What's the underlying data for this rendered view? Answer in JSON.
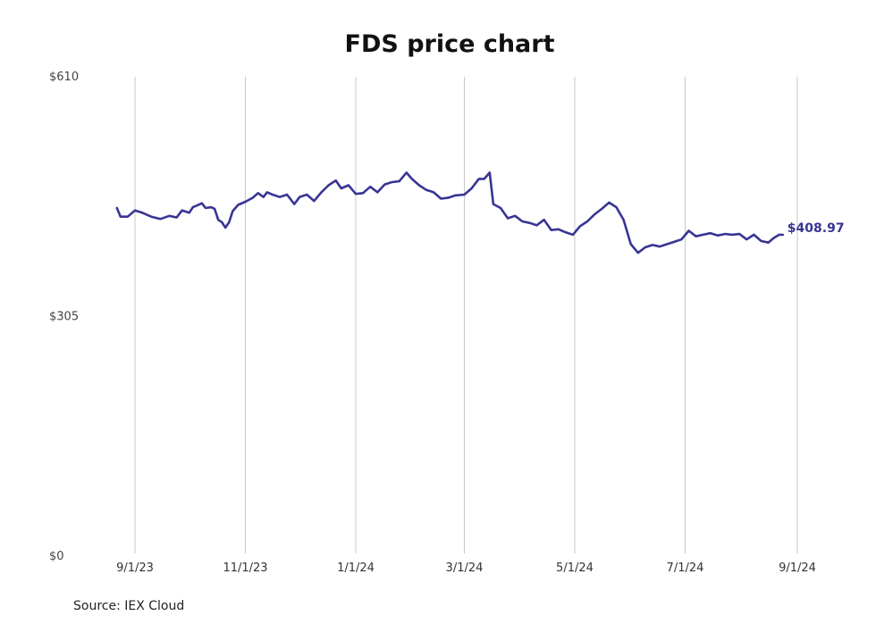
{
  "colors": {
    "line": "#383594",
    "grid": "#c8c8c8",
    "text": "#222222"
  },
  "source": "Source: IEX Cloud",
  "chart_data": {
    "type": "line",
    "title": "FDS price chart",
    "xlabel": "",
    "ylabel": "",
    "ylim": [
      0,
      610
    ],
    "y_ticks": [
      0,
      305,
      610
    ],
    "y_tick_labels": [
      "$0",
      "$305",
      "$610"
    ],
    "x_ticks": [
      "2023-09-01",
      "2023-11-01",
      "2024-01-01",
      "2024-03-01",
      "2024-05-01",
      "2024-07-01",
      "2024-09-01"
    ],
    "x_tick_labels": [
      "9/1/23",
      "11/1/23",
      "1/1/24",
      "3/1/24",
      "5/1/24",
      "7/1/24",
      "9/1/24"
    ],
    "xlim": [
      "2023-08-24",
      "2024-09-07"
    ],
    "grid": "vertical",
    "last_value_label": "$408.97",
    "series": [
      {
        "name": "",
        "x": [
          "2023-08-22",
          "2023-08-24",
          "2023-08-28",
          "2023-09-01",
          "2023-09-05",
          "2023-09-10",
          "2023-09-15",
          "2023-09-20",
          "2023-09-24",
          "2023-09-27",
          "2023-10-01",
          "2023-10-03",
          "2023-10-05",
          "2023-10-08",
          "2023-10-10",
          "2023-10-13",
          "2023-10-15",
          "2023-10-17",
          "2023-10-19",
          "2023-10-21",
          "2023-10-23",
          "2023-10-25",
          "2023-10-28",
          "2023-11-01",
          "2023-11-05",
          "2023-11-08",
          "2023-11-11",
          "2023-11-13",
          "2023-11-16",
          "2023-11-20",
          "2023-11-24",
          "2023-11-28",
          "2023-12-01",
          "2023-12-05",
          "2023-12-09",
          "2023-12-13",
          "2023-12-17",
          "2023-12-21",
          "2023-12-24",
          "2023-12-28",
          "2024-01-01",
          "2024-01-05",
          "2024-01-09",
          "2024-01-13",
          "2024-01-17",
          "2024-01-21",
          "2024-01-25",
          "2024-01-29",
          "2024-02-01",
          "2024-02-05",
          "2024-02-09",
          "2024-02-13",
          "2024-02-17",
          "2024-02-21",
          "2024-02-25",
          "2024-03-01",
          "2024-03-05",
          "2024-03-09",
          "2024-03-12",
          "2024-03-15",
          "2024-03-17",
          "2024-03-21",
          "2024-03-25",
          "2024-03-29",
          "2024-04-02",
          "2024-04-06",
          "2024-04-10",
          "2024-04-14",
          "2024-04-18",
          "2024-04-22",
          "2024-04-26",
          "2024-04-30",
          "2024-05-04",
          "2024-05-08",
          "2024-05-12",
          "2024-05-16",
          "2024-05-20",
          "2024-05-24",
          "2024-05-28",
          "2024-06-01",
          "2024-06-05",
          "2024-06-09",
          "2024-06-13",
          "2024-06-17",
          "2024-06-21",
          "2024-06-25",
          "2024-06-29",
          "2024-07-03",
          "2024-07-07",
          "2024-07-11",
          "2024-07-15",
          "2024-07-19",
          "2024-07-23",
          "2024-07-27",
          "2024-07-31",
          "2024-08-04",
          "2024-08-08",
          "2024-08-12",
          "2024-08-16",
          "2024-08-19",
          "2024-08-22",
          "2024-08-24"
        ],
        "values": [
          443,
          432,
          432,
          440,
          437,
          432,
          429,
          433,
          431,
          440,
          437,
          444,
          446,
          449,
          443,
          444,
          442,
          428,
          425,
          418,
          425,
          439,
          447,
          451,
          456,
          462,
          457,
          463,
          460,
          457,
          460,
          448,
          457,
          460,
          452,
          463,
          472,
          478,
          468,
          472,
          461,
          462,
          470,
          463,
          473,
          476,
          477,
          488,
          480,
          472,
          466,
          463,
          455,
          456,
          459,
          460,
          468,
          480,
          480,
          488,
          448,
          443,
          430,
          433,
          426,
          424,
          421,
          428,
          415,
          416,
          412,
          409,
          420,
          426,
          435,
          442,
          450,
          444,
          428,
          397,
          386,
          393,
          396,
          394,
          397,
          400,
          403,
          414,
          407,
          409,
          411,
          408,
          410,
          409,
          410,
          403,
          409,
          401,
          399,
          405,
          409,
          408.97
        ]
      }
    ]
  }
}
